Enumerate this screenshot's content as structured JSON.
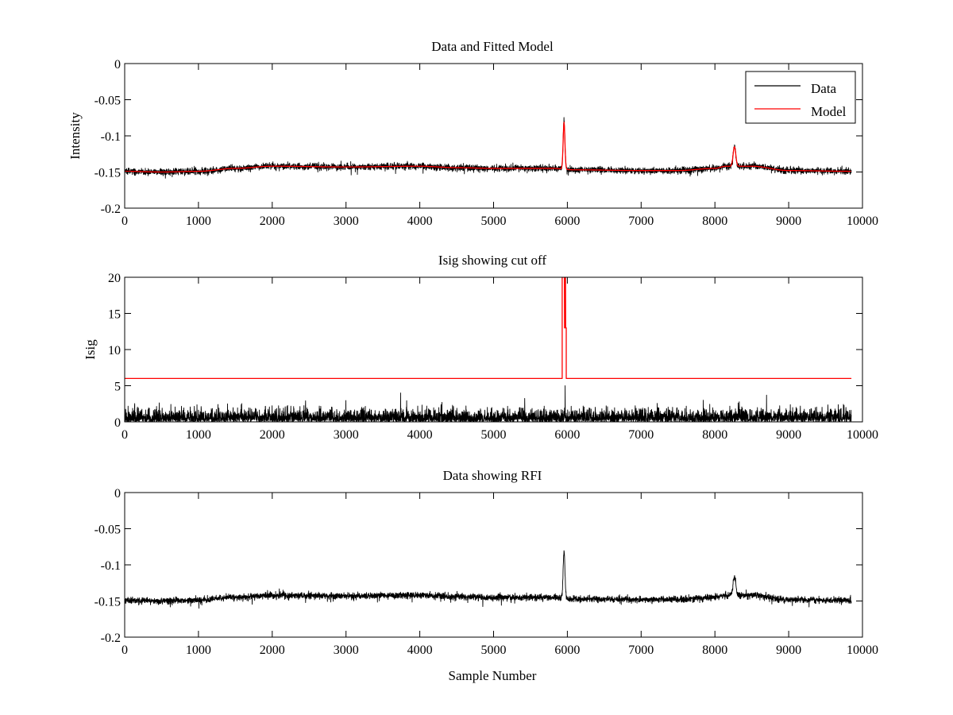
{
  "colors": {
    "data": "#000000",
    "model": "#ff0000",
    "axis": "#000000",
    "background": "#ffffff"
  },
  "xlabel_bottom": "Sample Number",
  "chart_data": [
    {
      "type": "line",
      "title": "Data and Fitted Model",
      "xlabel": "",
      "ylabel": "Intensity",
      "xlim": [
        0,
        10000
      ],
      "ylim": [
        -0.2,
        0
      ],
      "xticks": [
        0,
        1000,
        2000,
        3000,
        4000,
        5000,
        6000,
        7000,
        8000,
        9000,
        10000
      ],
      "xtick_labels": [
        "0",
        "1000",
        "2000",
        "3000",
        "4000",
        "5000",
        "6000",
        "7000",
        "8000",
        "9000",
        "10000"
      ],
      "yticks": [
        -0.2,
        -0.15,
        -0.1,
        -0.05,
        0
      ],
      "ytick_labels": [
        "-0.2",
        "-0.15",
        "-0.1",
        "-0.05",
        "0"
      ],
      "legend": {
        "position": "top-right",
        "entries": [
          "Data",
          "Model"
        ]
      },
      "grid": false,
      "series": [
        {
          "name": "Data",
          "color": "#000000",
          "kind": "noise",
          "n_samples": 9850,
          "noise_amplitude": 0.004,
          "baseline": {
            "x": [
              0,
              500,
              1000,
              1500,
              2000,
              3000,
              4000,
              4500,
              5000,
              5800,
              6100,
              7000,
              7500,
              8000,
              8150,
              8500,
              9000,
              9850
            ],
            "y": [
              -0.149,
              -0.15,
              -0.149,
              -0.145,
              -0.142,
              -0.143,
              -0.142,
              -0.144,
              -0.145,
              -0.145,
              -0.147,
              -0.148,
              -0.148,
              -0.145,
              -0.142,
              -0.142,
              -0.148,
              -0.149
            ]
          },
          "peaks": [
            {
              "x": 5955,
              "height": 0.065,
              "width": 12
            },
            {
              "x": 8265,
              "height": 0.027,
              "width": 18
            }
          ]
        },
        {
          "name": "Model",
          "color": "#ff0000",
          "kind": "smooth",
          "n_samples": 9850,
          "baseline": {
            "x": [
              0,
              500,
              1000,
              1500,
              2000,
              3000,
              4000,
              4500,
              5000,
              5800,
              6100,
              7000,
              7500,
              8000,
              8150,
              8500,
              9000,
              9850
            ],
            "y": [
              -0.149,
              -0.15,
              -0.149,
              -0.145,
              -0.142,
              -0.143,
              -0.142,
              -0.144,
              -0.145,
              -0.145,
              -0.147,
              -0.148,
              -0.148,
              -0.145,
              -0.142,
              -0.142,
              -0.148,
              -0.149
            ]
          },
          "peaks": [
            {
              "x": 5955,
              "height": 0.065,
              "width": 12
            },
            {
              "x": 8265,
              "height": 0.027,
              "width": 18
            }
          ]
        }
      ]
    },
    {
      "type": "line",
      "title": "Isig showing cut off",
      "xlabel": "",
      "ylabel": "Isig",
      "xlim": [
        0,
        10000
      ],
      "ylim": [
        0,
        20
      ],
      "xticks": [
        0,
        1000,
        2000,
        3000,
        4000,
        5000,
        6000,
        7000,
        8000,
        9000,
        10000
      ],
      "xtick_labels": [
        "0",
        "1000",
        "2000",
        "3000",
        "4000",
        "5000",
        "6000",
        "7000",
        "8000",
        "9000",
        "10000"
      ],
      "yticks": [
        0,
        5,
        10,
        15,
        20
      ],
      "ytick_labels": [
        "0",
        "5",
        "10",
        "15",
        "20"
      ],
      "grid": false,
      "series": [
        {
          "color": "#000000",
          "kind": "abs_noise",
          "n_samples": 9850,
          "noise_amplitude": 1.5,
          "spikes": [
            {
              "x": 3740,
              "value": 4.0
            },
            {
              "x": 5970,
              "value": 5.0
            },
            {
              "x": 8700,
              "value": 3.7
            }
          ]
        },
        {
          "color": "#ff0000",
          "kind": "step",
          "x": [
            0,
            5930,
            5930,
            5960,
            5962,
            5968,
            5970,
            5975,
            5977,
            5985,
            5985,
            9850
          ],
          "y": [
            6,
            6,
            20,
            20,
            13,
            13,
            20,
            20,
            13,
            13,
            6,
            6
          ]
        }
      ]
    },
    {
      "type": "line",
      "title": "Data showing RFI",
      "xlabel": "Sample Number",
      "ylabel": "",
      "xlim": [
        0,
        10000
      ],
      "ylim": [
        -0.2,
        0
      ],
      "xticks": [
        0,
        1000,
        2000,
        3000,
        4000,
        5000,
        6000,
        7000,
        8000,
        9000,
        10000
      ],
      "xtick_labels": [
        "0",
        "1000",
        "2000",
        "3000",
        "4000",
        "5000",
        "6000",
        "7000",
        "8000",
        "9000",
        "10000"
      ],
      "yticks": [
        -0.2,
        -0.15,
        -0.1,
        -0.05,
        0
      ],
      "ytick_labels": [
        "-0.2",
        "-0.15",
        "-0.1",
        "-0.05",
        "0"
      ],
      "grid": false,
      "series": [
        {
          "color": "#000000",
          "kind": "noise",
          "n_samples": 9850,
          "noise_amplitude": 0.004,
          "baseline": {
            "x": [
              0,
              500,
              1000,
              1500,
              2000,
              3000,
              4000,
              4500,
              5000,
              5800,
              6100,
              7000,
              7500,
              8000,
              8150,
              8500,
              9000,
              9850
            ],
            "y": [
              -0.149,
              -0.15,
              -0.149,
              -0.145,
              -0.142,
              -0.143,
              -0.142,
              -0.144,
              -0.145,
              -0.145,
              -0.147,
              -0.148,
              -0.148,
              -0.145,
              -0.142,
              -0.142,
              -0.148,
              -0.149
            ]
          },
          "peaks": [
            {
              "x": 5955,
              "height": 0.065,
              "width": 12
            },
            {
              "x": 8265,
              "height": 0.027,
              "width": 18
            }
          ]
        }
      ]
    }
  ]
}
